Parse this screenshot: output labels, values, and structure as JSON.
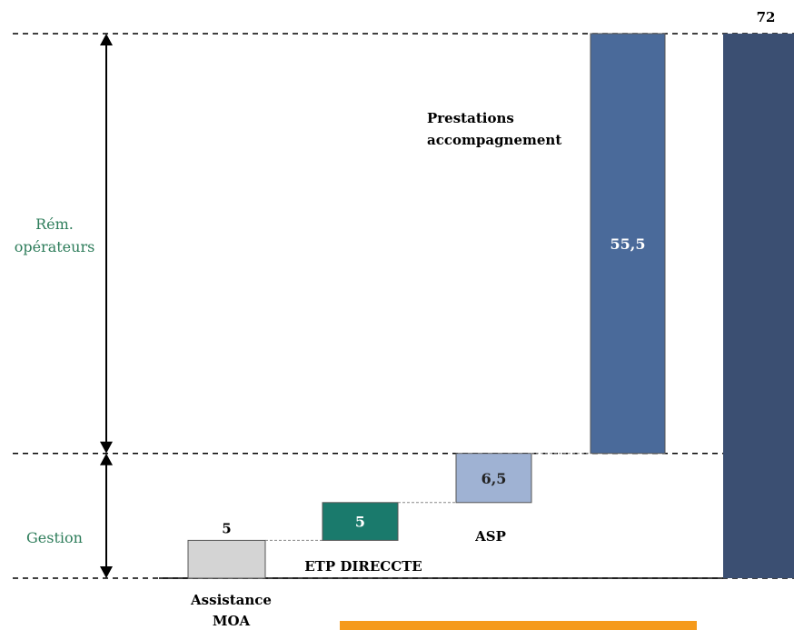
{
  "chart_data": {
    "type": "bar",
    "subtype": "waterfall",
    "categories": [
      "Assistance MOA",
      "ETP DIRECCTE",
      "ASP",
      "Prestations accompagnement",
      ""
    ],
    "values": [
      5,
      5,
      6.5,
      55.5,
      72
    ],
    "value_labels": [
      "5",
      "5",
      "6,5",
      "55,5",
      "72"
    ],
    "category_label_lines": [
      [
        "Assistance",
        "MOA"
      ],
      [
        "ETP DIRECCTE"
      ],
      [
        "ASP"
      ],
      [
        "Prestations",
        "accompagnement"
      ],
      []
    ],
    "cumulative_base": [
      0,
      5,
      10,
      16.5,
      0
    ],
    "colors": [
      "#d4d4d4",
      "#1a7a6c",
      "#9fb2d3",
      "#4a6a9a",
      "#3b4f72"
    ],
    "ylim": [
      0,
      72
    ],
    "brackets": [
      {
        "label_lines": [
          "Rém.",
          "opérateurs"
        ],
        "from": 16.5,
        "to": 72
      },
      {
        "label_lines": [
          "Gestion"
        ],
        "from": 0,
        "to": 16.5
      }
    ],
    "bracket_label_color": "#2e7d5b",
    "highlight_bar_color": "#f59a1b"
  }
}
